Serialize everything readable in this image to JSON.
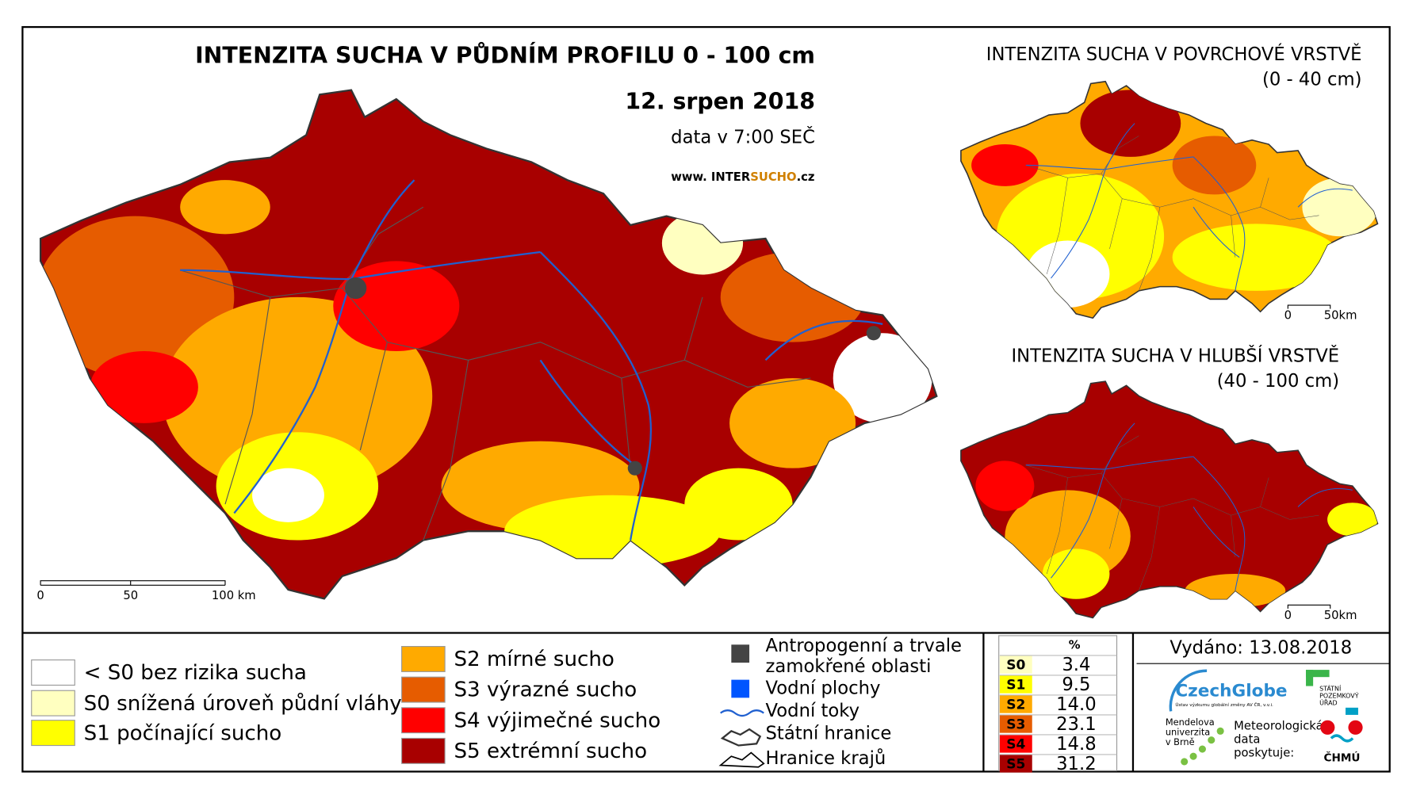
{
  "main_map": {
    "title": "INTENZITA SUCHA V PŮDNÍM PROFILU 0 - 100 cm",
    "date": "12. srpen 2018",
    "time": "data v 7:00 SEČ",
    "website": [
      "www. INTER",
      "SUCHO",
      ".cz"
    ],
    "scale": [
      "0",
      "50",
      "100 km"
    ]
  },
  "inset_surface": {
    "title": "INTENZITA SUCHA V POVRCHOVÉ VRSTVĚ",
    "subtitle": "(0 - 40 cm)",
    "scale": [
      "0",
      "50km"
    ]
  },
  "inset_deep": {
    "title": "INTENZITA SUCHA V HLUBŠÍ VRSTVĚ",
    "subtitle": "(40 - 100 cm)",
    "scale": [
      "0",
      "50km"
    ]
  },
  "legend": {
    "classes": [
      {
        "label": "< S0 bez rizika sucha",
        "color": "#ffffff"
      },
      {
        "label": "S0 snížená úroveň půdní vláhy",
        "color": "#ffffc0"
      },
      {
        "label": "S1 počínající sucho",
        "color": "#ffff00"
      },
      {
        "label": "S2 mírné sucho",
        "color": "#ffaa00"
      },
      {
        "label": "S3 výrazné sucho",
        "color": "#e65c00"
      },
      {
        "label": "S4 výjimečné sucho",
        "color": "#ff0000"
      },
      {
        "label": "S5 extrémní sucho",
        "color": "#a80000"
      }
    ],
    "features": [
      "Antropogenní a trvale",
      "zamokřené oblasti",
      "Vodní plochy",
      "Vodní toky",
      "Státní hranice",
      "Hranice krajů"
    ]
  },
  "stats": {
    "header": "%",
    "rows": [
      [
        "S0",
        "3.4"
      ],
      [
        "S1",
        "9.5"
      ],
      [
        "S2",
        "14.0"
      ],
      [
        "S3",
        "23.1"
      ],
      [
        "S4",
        "14.8"
      ],
      [
        "S5",
        "31.2"
      ]
    ]
  },
  "footer": {
    "issued": "Vydáno: 13.08.2018",
    "czechglobe": "CzechGlobe",
    "czechglobe_sub": "Ústav výzkumu globální změny AV ČR, v.v.i.",
    "mendelu": [
      "Mendelova",
      "univerzita",
      "v Brně"
    ],
    "spu": [
      "STÁTNÍ",
      "POZEMKOVÝ",
      "ÚŘAD"
    ],
    "chmu_text": [
      "Meteorologická",
      "data",
      "poskytuje:"
    ],
    "chmu": "ČHMÚ"
  }
}
